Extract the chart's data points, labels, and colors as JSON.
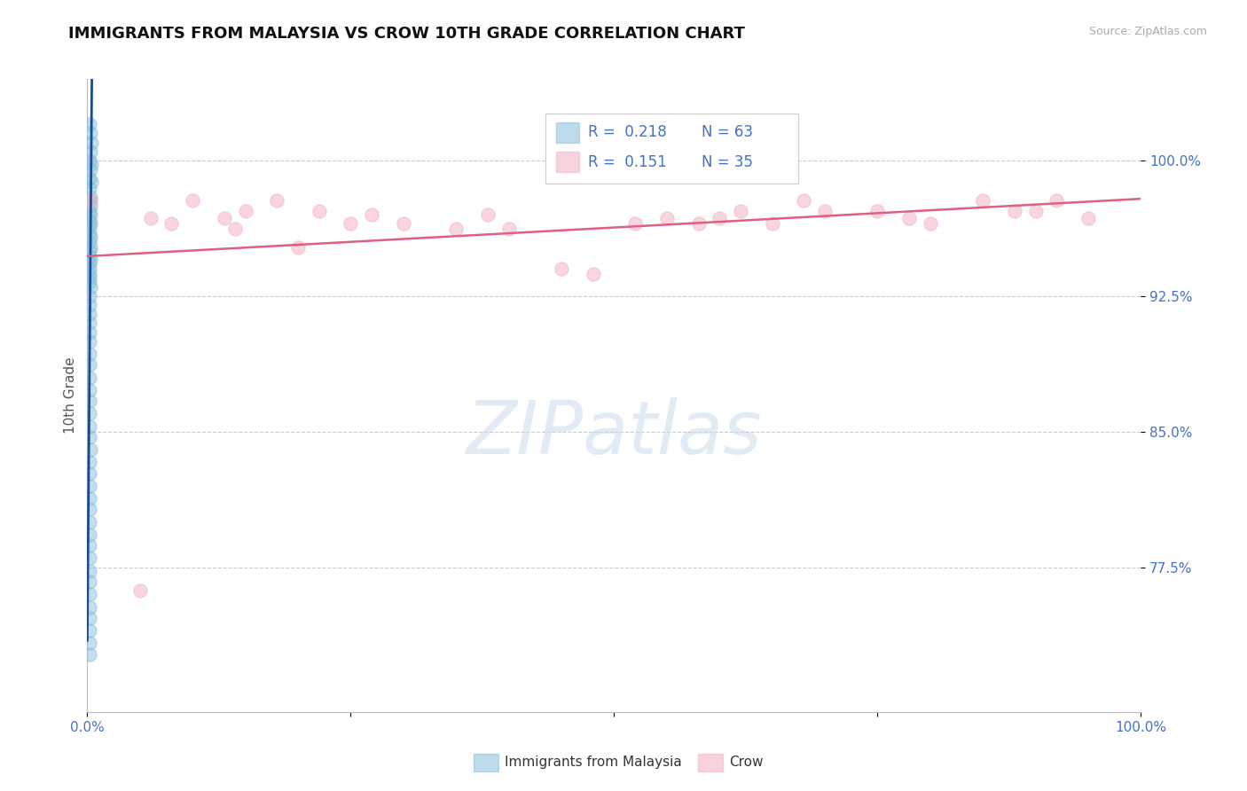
{
  "title": "IMMIGRANTS FROM MALAYSIA VS CROW 10TH GRADE CORRELATION CHART",
  "source": "Source: ZipAtlas.com",
  "ylabel": "10th Grade",
  "legend_label1": "Immigrants from Malaysia",
  "legend_label2": "Crow",
  "r1": 0.218,
  "n1": 63,
  "r2": 0.151,
  "n2": 35,
  "xmin": 0.0,
  "xmax": 1.0,
  "ymin": 0.695,
  "ymax": 1.045,
  "yticks": [
    0.775,
    0.85,
    0.925,
    1.0
  ],
  "ytick_labels": [
    "77.5%",
    "85.0%",
    "92.5%",
    "100.0%"
  ],
  "xticks": [
    0.0,
    0.25,
    0.5,
    0.75,
    1.0
  ],
  "xtick_labels": [
    "0.0%",
    "",
    "",
    "",
    "100.0%"
  ],
  "color_blue": "#89bfde",
  "color_pink": "#f4afc0",
  "color_trendline_blue": "#1a4b8c",
  "color_trendline_pink": "#e06080",
  "watermark_text": "ZIPatlas",
  "blue_x": [
    0.002,
    0.003,
    0.004,
    0.003,
    0.002,
    0.004,
    0.003,
    0.002,
    0.004,
    0.002,
    0.003,
    0.002,
    0.003,
    0.002,
    0.003,
    0.002,
    0.003,
    0.002,
    0.002,
    0.003,
    0.002,
    0.003,
    0.002,
    0.002,
    0.003,
    0.002,
    0.002,
    0.002,
    0.002,
    0.002,
    0.003,
    0.002,
    0.002,
    0.002,
    0.002,
    0.002,
    0.002,
    0.002,
    0.002,
    0.002,
    0.002,
    0.002,
    0.002,
    0.002,
    0.002,
    0.003,
    0.002,
    0.002,
    0.002,
    0.002,
    0.002,
    0.002,
    0.002,
    0.002,
    0.002,
    0.002,
    0.002,
    0.002,
    0.002,
    0.002,
    0.002,
    0.002,
    0.002
  ],
  "blue_y": [
    1.02,
    1.015,
    1.01,
    1.005,
    1.0,
    0.998,
    0.995,
    0.99,
    0.988,
    0.985,
    0.98,
    0.978,
    0.975,
    0.972,
    0.97,
    0.967,
    0.965,
    0.963,
    0.96,
    0.958,
    0.955,
    0.952,
    0.95,
    0.947,
    0.945,
    0.943,
    0.94,
    0.937,
    0.935,
    0.933,
    0.93,
    0.925,
    0.92,
    0.915,
    0.91,
    0.905,
    0.9,
    0.893,
    0.887,
    0.88,
    0.873,
    0.867,
    0.86,
    0.853,
    0.847,
    0.84,
    0.833,
    0.827,
    0.82,
    0.813,
    0.807,
    0.8,
    0.793,
    0.787,
    0.78,
    0.773,
    0.767,
    0.76,
    0.753,
    0.747,
    0.74,
    0.733,
    0.727
  ],
  "pink_x": [
    0.003,
    0.18,
    0.22,
    0.1,
    0.13,
    0.06,
    0.27,
    0.38,
    0.08,
    0.14,
    0.2,
    0.52,
    0.55,
    0.62,
    0.68,
    0.78,
    0.8,
    0.9,
    0.92,
    0.95,
    0.85,
    0.88,
    0.45,
    0.48,
    0.3,
    0.35,
    0.6,
    0.65,
    0.7,
    0.05,
    0.15,
    0.25,
    0.4,
    0.75,
    0.58
  ],
  "pink_y": [
    0.978,
    0.978,
    0.972,
    0.978,
    0.968,
    0.968,
    0.97,
    0.97,
    0.965,
    0.962,
    0.952,
    0.965,
    0.968,
    0.972,
    0.978,
    0.968,
    0.965,
    0.972,
    0.978,
    0.968,
    0.978,
    0.972,
    0.94,
    0.937,
    0.965,
    0.962,
    0.968,
    0.965,
    0.972,
    0.762,
    0.972,
    0.965,
    0.962,
    0.972,
    0.965
  ],
  "blue_trendline_x": [
    0.0,
    0.15
  ],
  "pink_trendline_x": [
    0.0,
    1.0
  ]
}
